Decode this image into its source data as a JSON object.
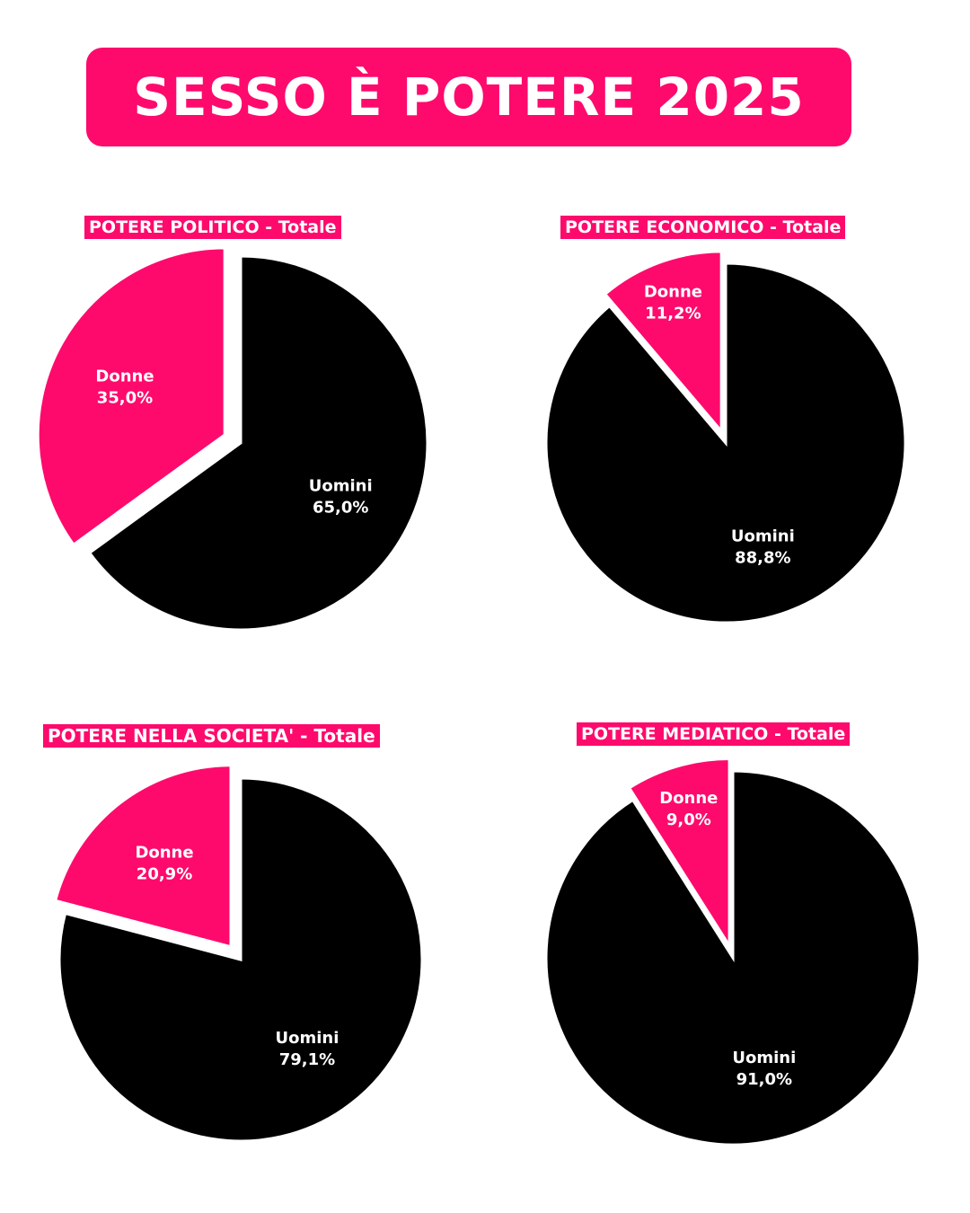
{
  "title": "SESSO È POTERE 2025",
  "colors": {
    "accent": "#fe0a6d",
    "men": "#000000",
    "text": "#ffffff",
    "background": "#ffffff"
  },
  "chart_data": [
    {
      "type": "pie",
      "title": "POTERE POLITICO - Totale",
      "categories": [
        "Uomini",
        "Donne"
      ],
      "values": [
        65.0,
        35.0
      ],
      "value_labels": [
        "65,0%",
        "35,0%"
      ],
      "exploded": "Donne"
    },
    {
      "type": "pie",
      "title": "POTERE ECONOMICO - Totale",
      "categories": [
        "Uomini",
        "Donne"
      ],
      "values": [
        88.8,
        11.2
      ],
      "value_labels": [
        "88,8%",
        "11,2%"
      ],
      "exploded": "Donne"
    },
    {
      "type": "pie",
      "title": "POTERE NELLA SOCIETA' - Totale",
      "categories": [
        "Uomini",
        "Donne"
      ],
      "values": [
        79.1,
        20.9
      ],
      "value_labels": [
        "79,1%",
        "20,9%"
      ],
      "exploded": "Donne"
    },
    {
      "type": "pie",
      "title": "POTERE MEDIATICO - Totale",
      "categories": [
        "Uomini",
        "Donne"
      ],
      "values": [
        91.0,
        9.0
      ],
      "value_labels": [
        "91,0%",
        "9,0%"
      ],
      "exploded": "Donne"
    }
  ]
}
